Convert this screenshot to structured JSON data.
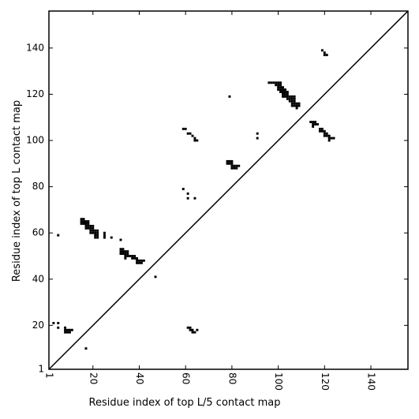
{
  "chart_data": {
    "type": "scatter",
    "subtype": "contact-map",
    "title": "",
    "xlabel": "Residue index of top L/5 contact map",
    "ylabel": "Residue index of top L contact map",
    "xlim": [
      1,
      156
    ],
    "ylim": [
      1,
      156
    ],
    "x_ticks": [
      1,
      20,
      40,
      60,
      80,
      100,
      120,
      140
    ],
    "y_ticks": [
      1,
      20,
      40,
      60,
      80,
      100,
      120,
      140
    ],
    "x_tick_rotation": -90,
    "diagonal": true,
    "grid": false,
    "marker_color": "#000000",
    "points": [
      [
        3,
        21
      ],
      [
        5,
        21
      ],
      [
        5,
        19
      ],
      [
        8,
        19
      ],
      [
        8,
        18
      ],
      [
        9,
        18
      ],
      [
        10,
        18
      ],
      [
        11,
        18
      ],
      [
        8,
        17
      ],
      [
        9,
        17
      ],
      [
        10,
        17
      ],
      [
        17,
        10
      ],
      [
        5,
        59
      ],
      [
        15,
        66
      ],
      [
        16,
        66
      ],
      [
        15,
        65
      ],
      [
        16,
        65
      ],
      [
        17,
        65
      ],
      [
        18,
        65
      ],
      [
        15,
        64
      ],
      [
        16,
        64
      ],
      [
        17,
        64
      ],
      [
        18,
        64
      ],
      [
        17,
        63
      ],
      [
        18,
        63
      ],
      [
        19,
        63
      ],
      [
        20,
        63
      ],
      [
        17,
        62
      ],
      [
        18,
        62
      ],
      [
        19,
        62
      ],
      [
        20,
        62
      ],
      [
        19,
        61
      ],
      [
        20,
        61
      ],
      [
        21,
        61
      ],
      [
        22,
        61
      ],
      [
        19,
        60
      ],
      [
        20,
        60
      ],
      [
        21,
        60
      ],
      [
        22,
        60
      ],
      [
        21,
        59
      ],
      [
        22,
        59
      ],
      [
        21,
        58
      ],
      [
        22,
        58
      ],
      [
        25,
        60
      ],
      [
        25,
        59
      ],
      [
        25,
        58
      ],
      [
        28,
        58
      ],
      [
        32,
        57
      ],
      [
        32,
        53
      ],
      [
        33,
        53
      ],
      [
        32,
        52
      ],
      [
        33,
        52
      ],
      [
        34,
        52
      ],
      [
        35,
        52
      ],
      [
        32,
        51
      ],
      [
        33,
        51
      ],
      [
        34,
        51
      ],
      [
        35,
        51
      ],
      [
        34,
        50
      ],
      [
        35,
        50
      ],
      [
        36,
        50
      ],
      [
        37,
        50
      ],
      [
        38,
        50
      ],
      [
        34,
        49
      ],
      [
        37,
        49
      ],
      [
        38,
        49
      ],
      [
        39,
        49
      ],
      [
        39,
        48
      ],
      [
        40,
        48
      ],
      [
        41,
        48
      ],
      [
        42,
        48
      ],
      [
        39,
        47
      ],
      [
        40,
        47
      ],
      [
        41,
        47
      ],
      [
        47,
        41
      ],
      [
        61,
        19
      ],
      [
        62,
        19
      ],
      [
        62,
        18
      ],
      [
        63,
        18
      ],
      [
        63,
        17
      ],
      [
        64,
        17
      ],
      [
        65,
        18
      ],
      [
        59,
        79
      ],
      [
        61,
        77
      ],
      [
        61,
        75
      ],
      [
        64,
        75
      ],
      [
        59,
        105
      ],
      [
        60,
        105
      ],
      [
        61,
        103
      ],
      [
        62,
        103
      ],
      [
        63,
        102
      ],
      [
        64,
        101
      ],
      [
        64,
        100
      ],
      [
        65,
        100
      ],
      [
        78,
        91
      ],
      [
        79,
        91
      ],
      [
        80,
        91
      ],
      [
        78,
        90
      ],
      [
        79,
        90
      ],
      [
        80,
        90
      ],
      [
        80,
        89
      ],
      [
        81,
        89
      ],
      [
        82,
        89
      ],
      [
        83,
        89
      ],
      [
        80,
        88
      ],
      [
        81,
        88
      ],
      [
        82,
        88
      ],
      [
        79,
        119
      ],
      [
        91,
        103
      ],
      [
        91,
        101
      ],
      [
        96,
        125
      ],
      [
        97,
        125
      ],
      [
        98,
        125
      ],
      [
        99,
        125
      ],
      [
        100,
        125
      ],
      [
        101,
        125
      ],
      [
        99,
        124
      ],
      [
        100,
        124
      ],
      [
        101,
        124
      ],
      [
        100,
        123
      ],
      [
        101,
        123
      ],
      [
        102,
        123
      ],
      [
        100,
        122
      ],
      [
        101,
        122
      ],
      [
        102,
        122
      ],
      [
        103,
        122
      ],
      [
        101,
        121
      ],
      [
        102,
        121
      ],
      [
        103,
        121
      ],
      [
        104,
        121
      ],
      [
        102,
        120
      ],
      [
        103,
        120
      ],
      [
        104,
        120
      ],
      [
        102,
        119
      ],
      [
        103,
        119
      ],
      [
        104,
        119
      ],
      [
        105,
        119
      ],
      [
        106,
        119
      ],
      [
        107,
        119
      ],
      [
        104,
        118
      ],
      [
        105,
        118
      ],
      [
        106,
        118
      ],
      [
        107,
        118
      ],
      [
        105,
        117
      ],
      [
        106,
        117
      ],
      [
        107,
        117
      ],
      [
        106,
        116
      ],
      [
        107,
        116
      ],
      [
        108,
        116
      ],
      [
        109,
        116
      ],
      [
        106,
        115
      ],
      [
        107,
        115
      ],
      [
        108,
        115
      ],
      [
        109,
        115
      ],
      [
        108,
        114
      ],
      [
        114,
        108
      ],
      [
        115,
        108
      ],
      [
        116,
        108
      ],
      [
        115,
        107
      ],
      [
        116,
        107
      ],
      [
        117,
        107
      ],
      [
        115,
        106
      ],
      [
        118,
        105
      ],
      [
        119,
        105
      ],
      [
        118,
        104
      ],
      [
        119,
        104
      ],
      [
        120,
        104
      ],
      [
        120,
        103
      ],
      [
        121,
        103
      ],
      [
        120,
        102
      ],
      [
        121,
        102
      ],
      [
        122,
        102
      ],
      [
        122,
        101
      ],
      [
        123,
        101
      ],
      [
        124,
        101
      ],
      [
        122,
        100
      ],
      [
        119,
        139
      ],
      [
        120,
        138
      ],
      [
        120,
        137
      ],
      [
        121,
        137
      ]
    ]
  }
}
